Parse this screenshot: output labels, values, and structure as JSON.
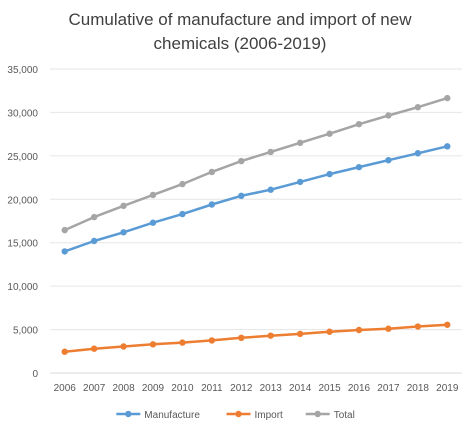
{
  "chart_data": {
    "type": "line",
    "title": "Cumulative of manufacture and import of new chemicals (2006-2019)",
    "title_lines": [
      "Cumulative of manufacture and import of new",
      "chemicals (2006-2019)"
    ],
    "xlabel": "",
    "ylabel": "",
    "x": [
      "2006",
      "2007",
      "2008",
      "2009",
      "2010",
      "2011",
      "2012",
      "2013",
      "2014",
      "2015",
      "2016",
      "2017",
      "2018",
      "2019"
    ],
    "ylim": [
      0,
      35000
    ],
    "yticks": [
      0,
      5000,
      10000,
      15000,
      20000,
      25000,
      30000,
      35000
    ],
    "ytick_labels": [
      "0",
      "5,000",
      "10,000",
      "15,000",
      "20,000",
      "25,000",
      "30,000",
      "35,000"
    ],
    "grid": true,
    "legend_position": "bottom",
    "series": [
      {
        "name": "Manufacture",
        "color": "#5b9bd5",
        "values": [
          14000,
          15200,
          16200,
          17300,
          18300,
          19400,
          20400,
          21100,
          22000,
          22900,
          23700,
          24500,
          25300,
          26100
        ]
      },
      {
        "name": "Import",
        "color": "#ed7d31",
        "values": [
          2450,
          2800,
          3050,
          3300,
          3500,
          3750,
          4050,
          4300,
          4500,
          4750,
          4950,
          5100,
          5350,
          5550
        ]
      },
      {
        "name": "Total",
        "color": "#a5a5a5",
        "values": [
          16450,
          17950,
          19250,
          20500,
          21750,
          23150,
          24400,
          25450,
          26500,
          27550,
          28650,
          29650,
          30600,
          31650
        ]
      }
    ]
  }
}
